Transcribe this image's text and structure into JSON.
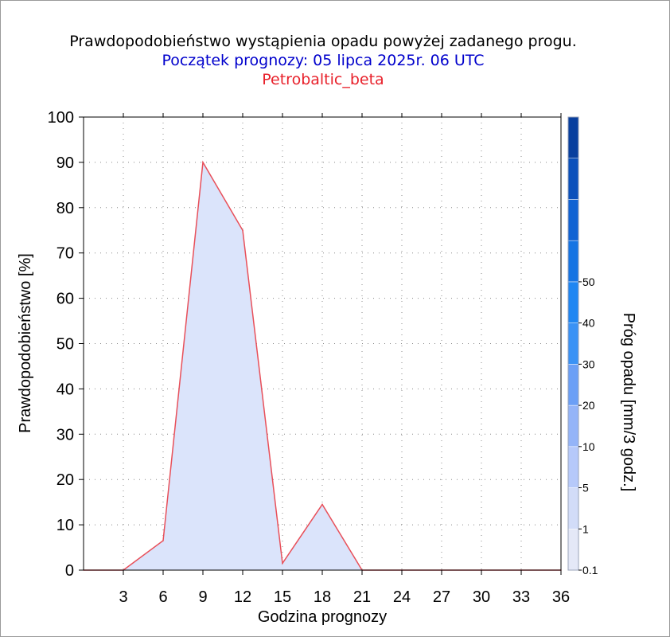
{
  "title": {
    "line1": "Prawdopodobieństwo wystąpienia opadu powyżej zadanego progu.",
    "line2": "Początek prognozy: 05 lipca 2025r. 06 UTC",
    "line3": "Petrobaltic_beta"
  },
  "colors": {
    "area_fill": "#dbe4fb",
    "area_line": "#e8505a",
    "subtitle": "#0000cc",
    "model_name": "#e8202a"
  },
  "chart_data": {
    "type": "area",
    "xlabel": "Godzina prognozy",
    "ylabel": "Prawdopodobieństwo [%]",
    "xlim": [
      0,
      36
    ],
    "ylim": [
      0,
      100
    ],
    "x_ticks": [
      3,
      6,
      9,
      12,
      15,
      18,
      21,
      24,
      27,
      30,
      33,
      36
    ],
    "y_ticks": [
      0,
      10,
      20,
      30,
      40,
      50,
      60,
      70,
      80,
      90,
      100
    ],
    "grid": true,
    "series": [
      {
        "x": [
          0,
          3,
          6,
          9,
          12,
          15,
          18,
          21,
          24,
          27,
          30,
          33,
          36
        ],
        "values": [
          0,
          0,
          6.5,
          90,
          75,
          1.5,
          14.5,
          0,
          0,
          0,
          0,
          0,
          0
        ]
      }
    ],
    "colorbar": {
      "label": "Próg opadu [mm/3 godz.]",
      "tick_labels": [
        "0.1",
        "1",
        "5",
        "10",
        "20",
        "30",
        "40",
        "50"
      ],
      "colors": [
        "#e4e8f7",
        "#d2dcf8",
        "#b6c9fa",
        "#94b4f8",
        "#6b9ff6",
        "#3a92f5",
        "#1f86f2",
        "#1674e3",
        "#1062d3",
        "#0b50bb",
        "#083f9e"
      ]
    }
  }
}
